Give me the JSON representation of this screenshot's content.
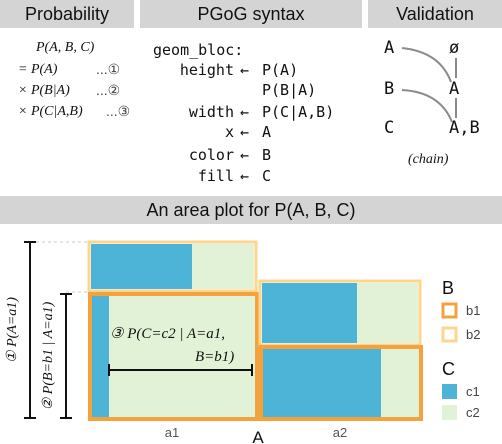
{
  "headers": {
    "probability": "Probability",
    "syntax": "PGoG syntax",
    "validation": "Validation",
    "area_plot": "An area plot for P(A, B, C)"
  },
  "probability": {
    "joint": "P(A, B, C)",
    "lines": [
      {
        "text": "= P(A)",
        "marker": "...①"
      },
      {
        "text": "× P(B|A)",
        "marker": "...②"
      },
      {
        "text": "× P(C|A,B)",
        "marker": "...③"
      }
    ]
  },
  "syntax": {
    "head": "geom_bloc:",
    "rows": [
      {
        "key": "height",
        "arrow": "←",
        "value": "P(A)"
      },
      {
        "key": "",
        "arrow": "",
        "value": "P(B|A)"
      },
      {
        "key": "width",
        "arrow": "←",
        "value": "P(C|A,B)"
      },
      {
        "key": "x",
        "arrow": "←",
        "value": "A"
      },
      {
        "key": "color",
        "arrow": "←",
        "value": "B"
      },
      {
        "key": "fill",
        "arrow": "←",
        "value": "C"
      }
    ]
  },
  "validation": {
    "left": [
      "A",
      "B",
      "C"
    ],
    "right": [
      "ø",
      "A",
      "A,B"
    ],
    "caption": "(chain)"
  },
  "plot": {
    "x_axis_label": "A",
    "x_categories": [
      "a1",
      "a2"
    ],
    "bracket_1": "① P(A=a1)",
    "bracket_2": "② P(B=b1 | A=a1)",
    "annotation_line1": "③ P(C=c2 | A=a1,",
    "annotation_line2": "B=b1)",
    "legend_b_title": "B",
    "legend_b": [
      "b1",
      "b2"
    ],
    "legend_c_title": "C",
    "legend_c": [
      "c1",
      "c2"
    ],
    "colors": {
      "b1": "#f4a23c",
      "b2": "#fbd68c",
      "c1": "#4db4d7",
      "c2": "#e2f2d7"
    }
  }
}
